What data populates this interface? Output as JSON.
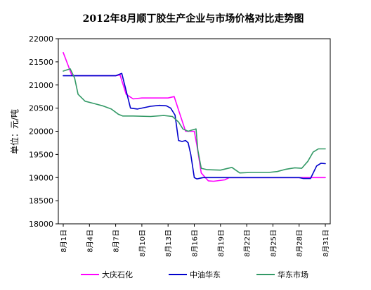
{
  "chart_data": {
    "type": "line",
    "title": "2012年8月顺丁胶生产企业与市场价格对比走势图",
    "ylabel": "单位：元/吨",
    "xlabel": "",
    "ylim": [
      18000,
      22000
    ],
    "yticks": [
      18000,
      18500,
      19000,
      19500,
      20000,
      20500,
      21000,
      21500,
      22000
    ],
    "x_range": [
      1,
      31
    ],
    "xticks": [
      {
        "x": 1,
        "label": "8月1日"
      },
      {
        "x": 4,
        "label": "8月4日"
      },
      {
        "x": 7,
        "label": "8月7日"
      },
      {
        "x": 10,
        "label": "8月10日"
      },
      {
        "x": 13,
        "label": "8月13日"
      },
      {
        "x": 16,
        "label": "8月16日"
      },
      {
        "x": 19,
        "label": "8月19日"
      },
      {
        "x": 22,
        "label": "8月22日"
      },
      {
        "x": 25,
        "label": "8月25日"
      },
      {
        "x": 28,
        "label": "8月28日"
      },
      {
        "x": 31,
        "label": "8月31日"
      }
    ],
    "grid": false,
    "legend_position": "bottom",
    "series": [
      {
        "name": "大庆石化",
        "color": "#ff00ff",
        "points": [
          [
            1,
            21700
          ],
          [
            1.6,
            21400
          ],
          [
            2,
            21200
          ],
          [
            3,
            21200
          ],
          [
            6,
            21200
          ],
          [
            7,
            21200
          ],
          [
            7.5,
            21220
          ],
          [
            8.2,
            20800
          ],
          [
            9,
            20700
          ],
          [
            10,
            20720
          ],
          [
            11,
            20720
          ],
          [
            12,
            20720
          ],
          [
            13,
            20720
          ],
          [
            13.7,
            20750
          ],
          [
            14.3,
            20400
          ],
          [
            15,
            20000
          ],
          [
            16,
            20000
          ],
          [
            16.3,
            19700
          ],
          [
            16.8,
            19100
          ],
          [
            17.6,
            18930
          ],
          [
            18.2,
            18920
          ],
          [
            19.5,
            18950
          ],
          [
            20,
            19000
          ],
          [
            22,
            19000
          ],
          [
            25,
            19000
          ],
          [
            28,
            19000
          ],
          [
            31,
            19000
          ]
        ]
      },
      {
        "name": "中油华东",
        "color": "#0000cc",
        "points": [
          [
            1,
            21200
          ],
          [
            3,
            21200
          ],
          [
            6,
            21200
          ],
          [
            7,
            21200
          ],
          [
            7.7,
            21250
          ],
          [
            8.3,
            20800
          ],
          [
            8.7,
            20500
          ],
          [
            9.5,
            20480
          ],
          [
            11,
            20540
          ],
          [
            12,
            20560
          ],
          [
            12.8,
            20550
          ],
          [
            13.3,
            20500
          ],
          [
            13.8,
            20350
          ],
          [
            14.2,
            19800
          ],
          [
            14.6,
            19780
          ],
          [
            15,
            19800
          ],
          [
            15.3,
            19750
          ],
          [
            15.6,
            19500
          ],
          [
            16,
            19000
          ],
          [
            16.3,
            18970
          ],
          [
            17,
            19000
          ],
          [
            20,
            19000
          ],
          [
            23,
            19000
          ],
          [
            26,
            19000
          ],
          [
            28,
            19000
          ],
          [
            28.5,
            18980
          ],
          [
            29.3,
            18980
          ],
          [
            30,
            19250
          ],
          [
            30.5,
            19310
          ],
          [
            31,
            19300
          ]
        ]
      },
      {
        "name": "华东市场",
        "color": "#339966",
        "points": [
          [
            1,
            21300
          ],
          [
            1.8,
            21350
          ],
          [
            2.3,
            21150
          ],
          [
            2.7,
            20800
          ],
          [
            3.5,
            20650
          ],
          [
            4.5,
            20600
          ],
          [
            5.5,
            20550
          ],
          [
            6.5,
            20480
          ],
          [
            7.3,
            20370
          ],
          [
            7.8,
            20330
          ],
          [
            9,
            20330
          ],
          [
            11,
            20320
          ],
          [
            12.5,
            20340
          ],
          [
            13.5,
            20320
          ],
          [
            14.2,
            20200
          ],
          [
            14.7,
            20050
          ],
          [
            15.3,
            20000
          ],
          [
            15.8,
            20030
          ],
          [
            16.2,
            20050
          ],
          [
            16.4,
            19600
          ],
          [
            16.8,
            19200
          ],
          [
            17.5,
            19170
          ],
          [
            19,
            19160
          ],
          [
            20.3,
            19220
          ],
          [
            21.2,
            19100
          ],
          [
            22.5,
            19110
          ],
          [
            24.5,
            19110
          ],
          [
            25.5,
            19130
          ],
          [
            26.5,
            19180
          ],
          [
            27.5,
            19210
          ],
          [
            28.3,
            19200
          ],
          [
            29,
            19350
          ],
          [
            29.6,
            19550
          ],
          [
            30.2,
            19620
          ],
          [
            31,
            19620
          ]
        ]
      }
    ]
  }
}
